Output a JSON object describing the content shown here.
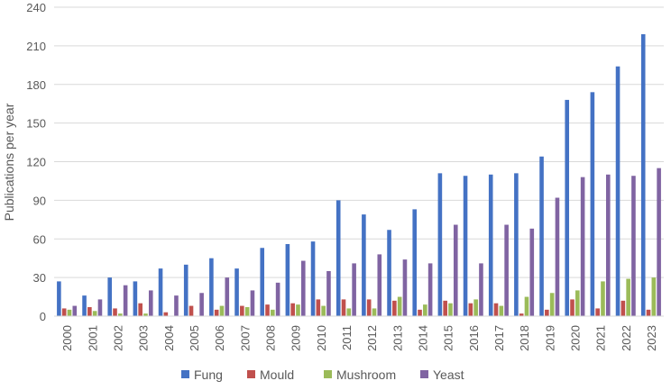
{
  "chart_data": {
    "type": "bar",
    "title": "",
    "xlabel": "",
    "ylabel": "Publications per year",
    "ylim": [
      0,
      240
    ],
    "yticks": [
      0,
      30,
      60,
      90,
      120,
      150,
      180,
      210,
      240
    ],
    "grid": true,
    "legend_position": "bottom",
    "categories": [
      "2000",
      "2001",
      "2002",
      "2003",
      "2004",
      "2005",
      "2006",
      "2007",
      "2008",
      "2009",
      "2010",
      "2011",
      "2012",
      "2013",
      "2014",
      "2015",
      "2016",
      "2017",
      "2018",
      "2019",
      "2020",
      "2021",
      "2022",
      "2023"
    ],
    "series": [
      {
        "name": "Fung",
        "color": "#4472C4",
        "values": [
          27,
          16,
          30,
          27,
          37,
          40,
          45,
          37,
          53,
          56,
          58,
          90,
          79,
          67,
          83,
          111,
          109,
          110,
          111,
          124,
          168,
          174,
          194,
          219
        ]
      },
      {
        "name": "Mould",
        "color": "#C0504D",
        "values": [
          6,
          7,
          6,
          10,
          3,
          8,
          5,
          8,
          9,
          10,
          13,
          13,
          13,
          12,
          5,
          12,
          10,
          10,
          2,
          5,
          13,
          6,
          12,
          5
        ]
      },
      {
        "name": "Mushroom",
        "color": "#9BBB59",
        "values": [
          5,
          4,
          2,
          2,
          0,
          0,
          8,
          7,
          5,
          9,
          8,
          6,
          6,
          15,
          9,
          10,
          13,
          8,
          15,
          18,
          20,
          27,
          29,
          30
        ]
      },
      {
        "name": "Yeast",
        "color": "#8064A2",
        "values": [
          8,
          13,
          24,
          20,
          16,
          18,
          30,
          20,
          26,
          43,
          35,
          41,
          48,
          44,
          41,
          71,
          41,
          71,
          68,
          92,
          108,
          110,
          109,
          115
        ]
      }
    ]
  }
}
